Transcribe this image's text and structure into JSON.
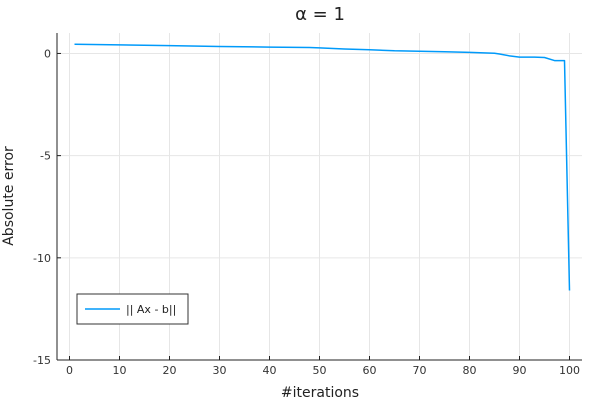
{
  "chart_data": {
    "type": "line",
    "title": "α =  1",
    "xlabel": "#iterations",
    "ylabel": "Absolute error",
    "xlim": [
      -2.5,
      102.5
    ],
    "ylim": [
      -15,
      1
    ],
    "xticks": [
      0,
      10,
      20,
      30,
      40,
      50,
      60,
      70,
      80,
      90,
      100
    ],
    "yticks": [
      0,
      -5,
      -10,
      -15
    ],
    "xtick_labels": [
      "0",
      "10",
      "20",
      "30",
      "40",
      "50",
      "60",
      "70",
      "80",
      "90",
      "100"
    ],
    "ytick_labels": [
      "0",
      "-5",
      "-10",
      "-15"
    ],
    "grid": true,
    "legend_position": "bottom-left",
    "series": [
      {
        "name": "|| Ax - b||",
        "color": "#009AFA",
        "x": [
          1,
          10,
          20,
          30,
          40,
          48,
          50,
          55,
          60,
          65,
          70,
          75,
          80,
          85,
          86,
          88,
          90,
          93,
          95,
          97,
          99,
          100
        ],
        "y": [
          0.45,
          0.42,
          0.38,
          0.34,
          0.31,
          0.29,
          0.27,
          0.22,
          0.18,
          0.13,
          0.11,
          0.08,
          0.05,
          0.01,
          -0.03,
          -0.12,
          -0.18,
          -0.18,
          -0.2,
          -0.35,
          -0.35,
          -11.6
        ]
      }
    ]
  }
}
